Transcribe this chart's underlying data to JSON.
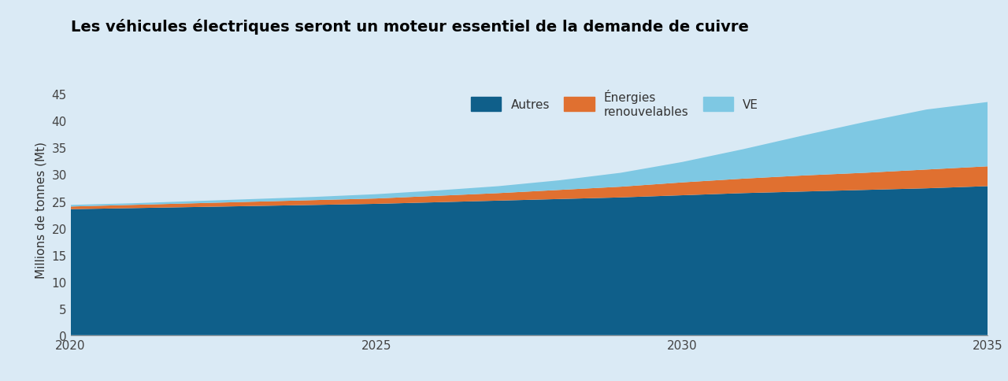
{
  "title": "Les véhicules électriques seront un moteur essentiel de la demande de cuivre",
  "ylabel": "Millions de tonnes (Mt)",
  "background_color": "#daeaf5",
  "plot_background_color": "#daeaf5",
  "years": [
    2020,
    2021,
    2022,
    2023,
    2024,
    2025,
    2026,
    2027,
    2028,
    2029,
    2030,
    2031,
    2032,
    2033,
    2034,
    2035
  ],
  "autres": [
    23.5,
    23.7,
    23.9,
    24.1,
    24.3,
    24.5,
    24.8,
    25.1,
    25.4,
    25.7,
    26.1,
    26.5,
    26.8,
    27.1,
    27.4,
    27.8
  ],
  "energies": [
    0.5,
    0.6,
    0.7,
    0.8,
    0.9,
    1.0,
    1.2,
    1.4,
    1.7,
    2.0,
    2.4,
    2.7,
    3.0,
    3.2,
    3.5,
    3.7
  ],
  "ve": [
    0.3,
    0.3,
    0.4,
    0.5,
    0.6,
    0.8,
    1.0,
    1.3,
    1.8,
    2.6,
    3.8,
    5.5,
    7.5,
    9.5,
    11.2,
    12.0
  ],
  "color_autres": "#0f5f8a",
  "color_energies": "#e07030",
  "color_ve": "#7ec8e3",
  "ylim": [
    0,
    47
  ],
  "yticks": [
    0,
    5,
    10,
    15,
    20,
    25,
    30,
    35,
    40,
    45
  ],
  "xticks": [
    2020,
    2025,
    2030,
    2035
  ],
  "legend_labels": [
    "Autres",
    "Énergies\nrenouvelables",
    "VE"
  ],
  "title_fontsize": 14,
  "axis_fontsize": 11,
  "tick_fontsize": 11
}
